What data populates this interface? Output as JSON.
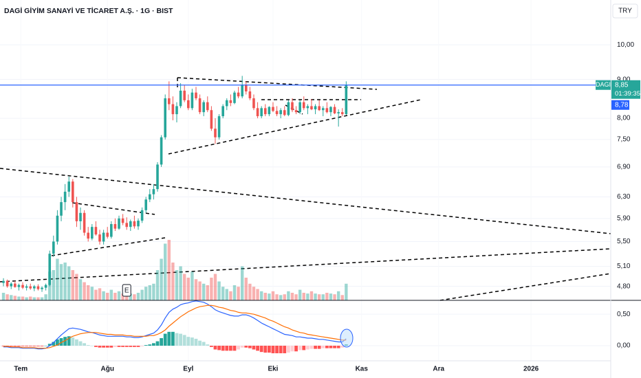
{
  "chart_data": {
    "type": "candlestick",
    "title": "DAGİ GİYİM SANAYİ VE TİCARET A.Ş. · 1G · BIST",
    "currency": "TRY",
    "log_scale": true,
    "grid": true,
    "up_color": "#26a69a",
    "down_color": "#ef5350",
    "xlim": [
      -0.9,
      157.7
    ],
    "xticks": [
      {
        "value": 4.5,
        "label": "Tem"
      },
      {
        "value": 27,
        "label": "Ağu"
      },
      {
        "value": 48,
        "label": "Eyl"
      },
      {
        "value": 70,
        "label": "Eki"
      },
      {
        "value": 93,
        "label": "Kas"
      },
      {
        "value": 113,
        "label": "Ara"
      },
      {
        "value": 137,
        "label": "2026"
      }
    ],
    "ylim": [
      4.6,
      11.46
    ],
    "yticks": [
      {
        "value": 10,
        "label": "10,00"
      },
      {
        "value": 9,
        "label": "9,00"
      },
      {
        "value": 8,
        "label": "8,00"
      },
      {
        "value": 7.5,
        "label": "7,50"
      },
      {
        "value": 6.9,
        "label": "6,90"
      },
      {
        "value": 6.3,
        "label": "6,30"
      },
      {
        "value": 5.9,
        "label": "5,90"
      },
      {
        "value": 5.5,
        "label": "5,50"
      },
      {
        "value": 5.1,
        "label": "5,10"
      },
      {
        "value": 4.8,
        "label": "4,80"
      }
    ],
    "open": [
      4.85,
      4.88,
      4.8,
      4.84,
      4.79,
      4.82,
      4.78,
      4.8,
      4.77,
      4.8,
      4.76,
      4.78,
      4.82,
      5.3,
      5.5,
      5.95,
      6.2,
      6.4,
      6.6,
      6.2,
      5.85,
      6.0,
      5.65,
      5.55,
      5.75,
      5.62,
      5.5,
      5.65,
      5.58,
      5.8,
      5.72,
      5.9,
      5.82,
      5.75,
      5.85,
      5.76,
      5.86,
      6.05,
      6.25,
      6.35,
      6.45,
      6.95,
      7.55,
      8.5,
      8.35,
      8.1,
      8.3,
      8.7,
      8.45,
      8.25,
      8.65,
      8.5,
      8.15,
      8.4,
      8.2,
      7.75,
      7.55,
      8.05,
      8.3,
      8.45,
      8.38,
      8.65,
      8.55,
      8.85,
      8.68,
      8.5,
      8.25,
      8.05,
      8.25,
      8.1,
      8.28,
      8.18,
      8.1,
      8.2,
      8.08,
      8.4,
      8.2,
      8.15,
      8.4,
      8.25,
      8.3,
      8.22,
      8.3,
      8.2,
      8.25,
      8.15,
      8.28,
      8.12,
      8.15,
      8.1
    ],
    "high": [
      4.92,
      4.9,
      4.86,
      4.88,
      4.84,
      4.86,
      4.83,
      4.84,
      4.82,
      4.83,
      4.8,
      4.84,
      5.35,
      5.6,
      6.05,
      6.3,
      6.55,
      6.7,
      6.65,
      6.3,
      6.1,
      6.05,
      5.75,
      5.8,
      5.85,
      5.7,
      5.7,
      5.75,
      5.85,
      5.9,
      5.95,
      5.98,
      5.92,
      5.88,
      5.95,
      5.9,
      6.1,
      6.3,
      6.45,
      6.55,
      7.0,
      7.6,
      8.6,
      8.95,
      8.55,
      8.4,
      8.9,
      8.85,
      8.6,
      8.75,
      8.8,
      8.6,
      8.45,
      8.55,
      8.3,
      8.0,
      8.1,
      8.35,
      8.5,
      8.6,
      8.7,
      8.8,
      9.1,
      8.95,
      8.8,
      8.6,
      8.4,
      8.3,
      8.35,
      8.3,
      8.4,
      8.3,
      8.25,
      8.3,
      8.45,
      8.5,
      8.3,
      8.45,
      8.55,
      8.35,
      8.48,
      8.35,
      8.45,
      8.3,
      8.4,
      8.3,
      8.35,
      8.22,
      8.25,
      8.95
    ],
    "low": [
      4.8,
      4.78,
      4.76,
      4.78,
      4.74,
      4.76,
      4.74,
      4.75,
      4.73,
      4.74,
      4.72,
      4.74,
      4.8,
      5.25,
      5.45,
      5.85,
      6.05,
      6.3,
      6.1,
      5.75,
      5.7,
      5.6,
      5.5,
      5.52,
      5.6,
      5.45,
      5.45,
      5.55,
      5.55,
      5.68,
      5.7,
      5.78,
      5.7,
      5.68,
      5.72,
      5.7,
      5.82,
      6.0,
      6.2,
      6.25,
      6.4,
      6.9,
      7.5,
      8.2,
      7.95,
      7.9,
      8.25,
      8.4,
      8.2,
      8.2,
      8.45,
      8.1,
      8.05,
      8.15,
      7.7,
      7.4,
      7.5,
      8.0,
      8.2,
      8.3,
      8.35,
      8.5,
      8.5,
      8.6,
      8.45,
      8.2,
      8.0,
      8.0,
      8.05,
      8.05,
      8.15,
      8.05,
      8.0,
      8.05,
      8.05,
      8.15,
      8.1,
      8.1,
      8.2,
      8.1,
      8.2,
      8.1,
      8.18,
      8.05,
      8.12,
      8.05,
      8.1,
      7.8,
      8.05,
      8.08
    ],
    "close": [
      4.88,
      4.8,
      4.84,
      4.79,
      4.82,
      4.78,
      4.8,
      4.77,
      4.8,
      4.76,
      4.78,
      4.82,
      5.3,
      5.5,
      5.95,
      6.2,
      6.4,
      6.6,
      6.2,
      5.85,
      6.0,
      5.65,
      5.55,
      5.75,
      5.62,
      5.5,
      5.65,
      5.58,
      5.8,
      5.72,
      5.9,
      5.82,
      5.75,
      5.85,
      5.76,
      5.86,
      6.05,
      6.25,
      6.35,
      6.45,
      6.95,
      7.55,
      8.5,
      8.35,
      8.1,
      8.3,
      8.7,
      8.45,
      8.25,
      8.65,
      8.5,
      8.15,
      8.4,
      8.2,
      7.75,
      7.55,
      8.05,
      8.3,
      8.45,
      8.38,
      8.65,
      8.55,
      8.85,
      8.68,
      8.5,
      8.25,
      8.05,
      8.25,
      8.1,
      8.28,
      8.18,
      8.1,
      8.2,
      8.08,
      8.4,
      8.2,
      8.15,
      8.4,
      8.25,
      8.3,
      8.22,
      8.3,
      8.2,
      8.25,
      8.15,
      8.28,
      8.12,
      8.15,
      8.1,
      8.85
    ],
    "volume": [
      10,
      8,
      7,
      6,
      5,
      5,
      4,
      5,
      4,
      4,
      4,
      8,
      38,
      40,
      55,
      48,
      50,
      45,
      40,
      35,
      28,
      24,
      20,
      18,
      14,
      16,
      12,
      10,
      14,
      10,
      12,
      9,
      8,
      9,
      8,
      10,
      14,
      18,
      20,
      22,
      40,
      55,
      75,
      80,
      50,
      40,
      45,
      35,
      30,
      38,
      28,
      25,
      22,
      20,
      30,
      35,
      25,
      18,
      15,
      12,
      20,
      18,
      45,
      30,
      22,
      18,
      15,
      12,
      10,
      9,
      12,
      8,
      7,
      8,
      12,
      10,
      8,
      14,
      10,
      9,
      12,
      9,
      8,
      8,
      10,
      9,
      8,
      12,
      7,
      22
    ],
    "event_marker": {
      "index": 32,
      "label": "E"
    },
    "last_price": {
      "value": 8.85,
      "label": "8,85"
    },
    "symbol_tag": "DAGI",
    "countdown": "01:39:35",
    "second_price": {
      "value": 8.78,
      "label": "8,78"
    },
    "line_color": "#2962ff",
    "macd_pane": {
      "ylim": [
        -0.24,
        0.72
      ],
      "yticks": [
        {
          "value": 0.5,
          "label": "0,50"
        },
        {
          "value": 0,
          "label": "0,00"
        }
      ],
      "macd_color": "#2962ff",
      "signal_color": "#ff6d00",
      "macd": [
        -0.02,
        -0.02,
        -0.03,
        -0.03,
        -0.03,
        -0.04,
        -0.04,
        -0.04,
        -0.04,
        -0.05,
        -0.05,
        -0.04,
        0.0,
        0.05,
        0.11,
        0.17,
        0.22,
        0.27,
        0.28,
        0.27,
        0.26,
        0.24,
        0.22,
        0.21,
        0.19,
        0.17,
        0.16,
        0.15,
        0.15,
        0.15,
        0.15,
        0.15,
        0.14,
        0.14,
        0.13,
        0.13,
        0.14,
        0.16,
        0.18,
        0.2,
        0.25,
        0.33,
        0.44,
        0.53,
        0.58,
        0.61,
        0.65,
        0.67,
        0.68,
        0.7,
        0.71,
        0.7,
        0.69,
        0.66,
        0.62,
        0.57,
        0.54,
        0.52,
        0.5,
        0.48,
        0.47,
        0.47,
        0.49,
        0.49,
        0.47,
        0.44,
        0.4,
        0.36,
        0.33,
        0.3,
        0.27,
        0.24,
        0.21,
        0.18,
        0.17,
        0.16,
        0.14,
        0.14,
        0.13,
        0.12,
        0.12,
        0.11,
        0.1,
        0.1,
        0.09,
        0.08,
        0.07,
        0.06,
        0.06,
        0.11
      ],
      "signal": [
        -0.01,
        -0.01,
        -0.02,
        -0.02,
        -0.02,
        -0.03,
        -0.03,
        -0.03,
        -0.03,
        -0.04,
        -0.04,
        -0.04,
        -0.03,
        -0.01,
        0.01,
        0.05,
        0.08,
        0.12,
        0.15,
        0.17,
        0.19,
        0.2,
        0.21,
        0.21,
        0.21,
        0.2,
        0.19,
        0.18,
        0.18,
        0.17,
        0.17,
        0.17,
        0.16,
        0.16,
        0.15,
        0.15,
        0.15,
        0.15,
        0.16,
        0.16,
        0.18,
        0.21,
        0.25,
        0.31,
        0.36,
        0.41,
        0.46,
        0.5,
        0.54,
        0.57,
        0.6,
        0.62,
        0.63,
        0.64,
        0.64,
        0.63,
        0.61,
        0.6,
        0.58,
        0.56,
        0.55,
        0.53,
        0.52,
        0.52,
        0.51,
        0.5,
        0.48,
        0.46,
        0.44,
        0.41,
        0.39,
        0.36,
        0.33,
        0.3,
        0.28,
        0.25,
        0.23,
        0.21,
        0.2,
        0.18,
        0.17,
        0.16,
        0.15,
        0.14,
        0.13,
        0.12,
        0.11,
        0.1,
        0.09,
        0.09
      ],
      "histogram": [
        -0.01,
        -0.01,
        -0.01,
        -0.01,
        -0.01,
        -0.01,
        -0.01,
        -0.01,
        -0.01,
        -0.01,
        -0.01,
        0.0,
        0.03,
        0.06,
        0.1,
        0.12,
        0.14,
        0.15,
        0.13,
        0.1,
        0.07,
        0.04,
        0.01,
        0.0,
        -0.02,
        -0.03,
        -0.03,
        -0.03,
        -0.03,
        -0.02,
        -0.02,
        -0.02,
        -0.02,
        -0.02,
        -0.02,
        -0.02,
        -0.01,
        0.01,
        0.02,
        0.04,
        0.07,
        0.12,
        0.19,
        0.22,
        0.22,
        0.2,
        0.19,
        0.17,
        0.14,
        0.13,
        0.11,
        0.08,
        0.06,
        0.02,
        -0.02,
        -0.06,
        -0.07,
        -0.08,
        -0.08,
        -0.08,
        -0.08,
        -0.06,
        -0.03,
        -0.03,
        -0.04,
        -0.06,
        -0.08,
        -0.1,
        -0.11,
        -0.11,
        -0.12,
        -0.12,
        -0.12,
        -0.12,
        -0.11,
        -0.09,
        -0.09,
        -0.07,
        -0.07,
        -0.06,
        -0.05,
        -0.05,
        -0.05,
        -0.04,
        -0.04,
        -0.04,
        -0.04,
        -0.04,
        -0.03,
        0.02
      ]
    }
  }
}
